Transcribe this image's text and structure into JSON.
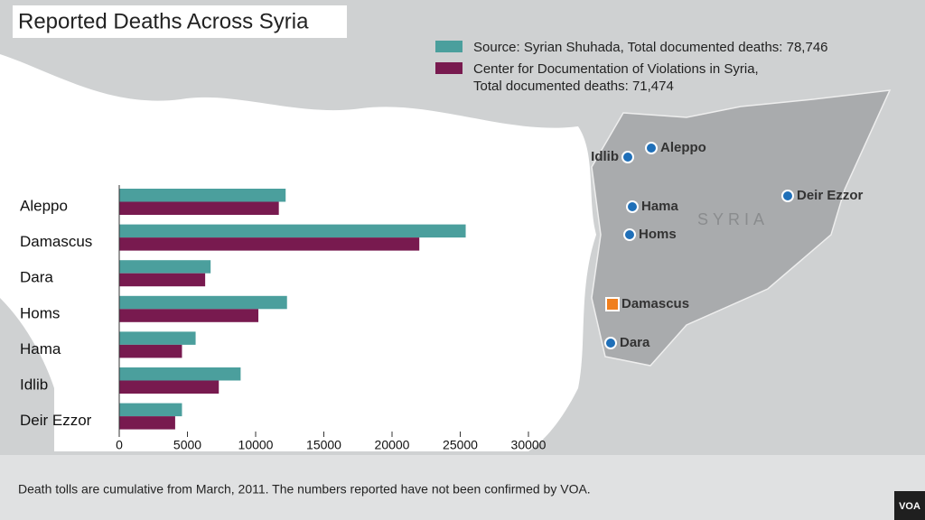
{
  "chart_data": {
    "type": "hbar",
    "title": "Reported Deaths Across Syria",
    "categories": [
      "Aleppo",
      "Damascus",
      "Dara",
      "Homs",
      "Hama",
      "Idlib",
      "Deir Ezzor"
    ],
    "series": [
      {
        "name": "Source: Syrian Shuhada, Total documented deaths: 78,746",
        "color": "#4b9f9d",
        "values": [
          12200,
          25400,
          6700,
          12300,
          5600,
          8900,
          4600
        ]
      },
      {
        "name": "Center for Documentation of Violations in Syria, Total documented deaths: 71,474",
        "color": "#781a4f",
        "values": [
          11700,
          22000,
          6300,
          10200,
          4600,
          7300,
          4100
        ]
      }
    ],
    "xlim": [
      0,
      30000
    ],
    "xticks": [
      0,
      5000,
      10000,
      15000,
      20000,
      25000,
      30000
    ],
    "note": "Death tolls are cumulative from March, 2011.  The numbers reported have not been confirmed by VOA."
  },
  "map": {
    "country": "SYRIA",
    "places": [
      {
        "label": "Aleppo",
        "kind": "city"
      },
      {
        "label": "Idlib",
        "kind": "city"
      },
      {
        "label": "Hama",
        "kind": "city"
      },
      {
        "label": "Deir Ezzor",
        "kind": "city"
      },
      {
        "label": "Homs",
        "kind": "city"
      },
      {
        "label": "Damascus",
        "kind": "capital"
      },
      {
        "label": "Dara",
        "kind": "city"
      }
    ]
  },
  "logo": "VOA"
}
